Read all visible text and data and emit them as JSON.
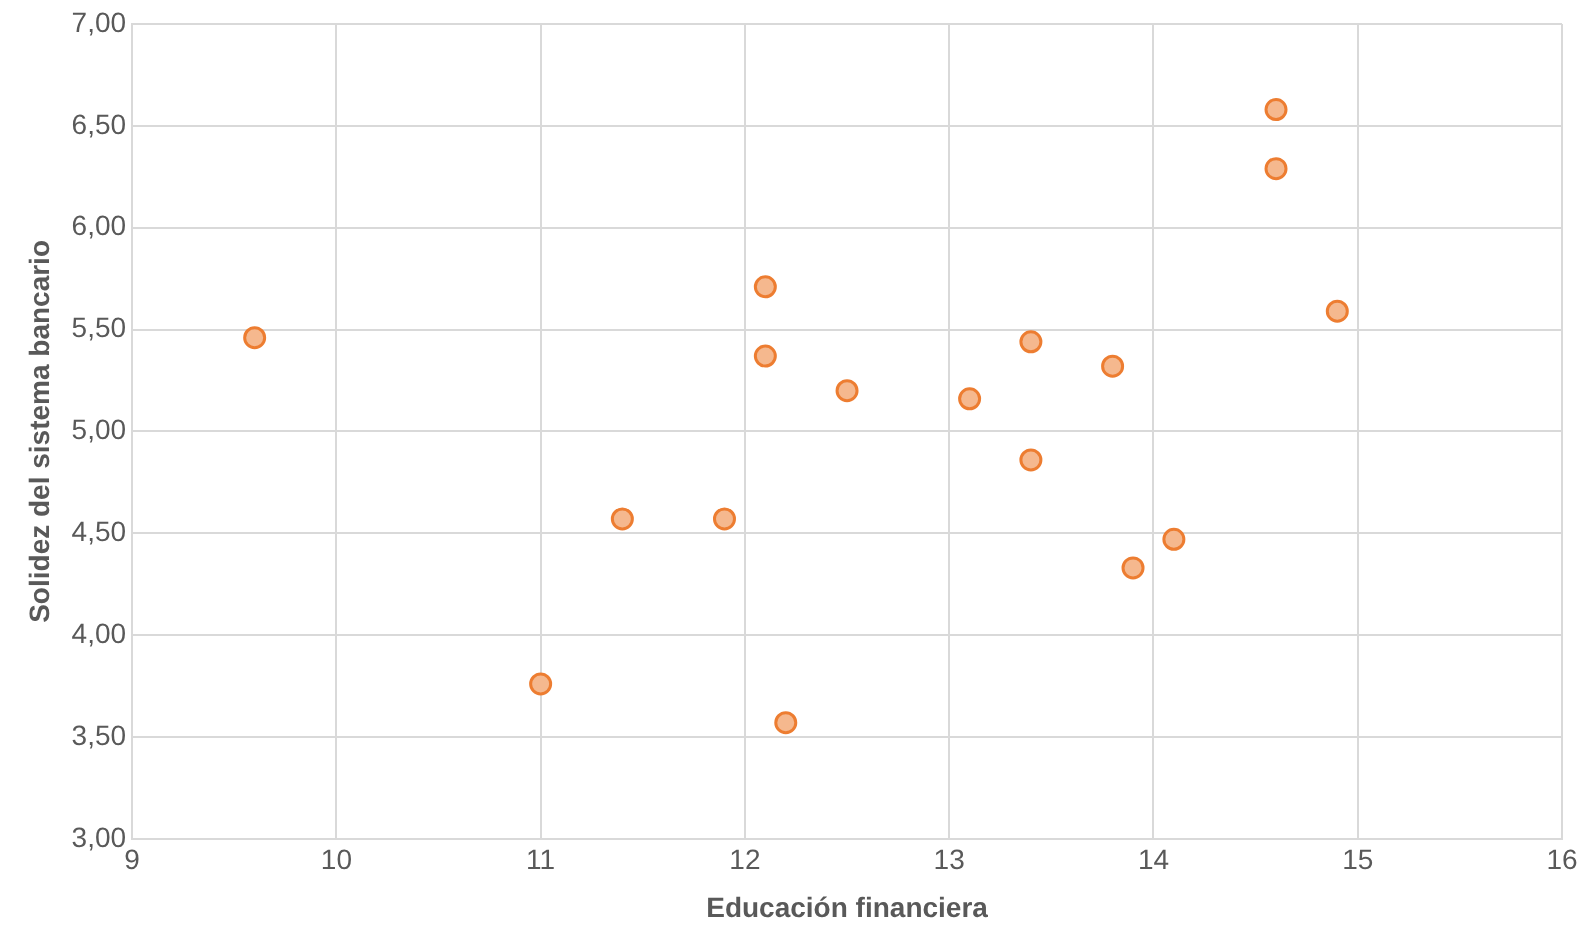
{
  "chart_data": {
    "type": "scatter",
    "xlabel": "Educación financiera",
    "ylabel": "Solidez del sistema bancario",
    "x": [
      9.6,
      11.0,
      11.4,
      11.9,
      12.1,
      12.1,
      12.2,
      12.5,
      13.1,
      13.4,
      13.4,
      13.8,
      13.9,
      14.1,
      14.6,
      14.6,
      14.9
    ],
    "series": [
      {
        "color": "#ed7d31",
        "values": [
          5.46,
          3.76,
          4.57,
          4.57,
          5.71,
          5.37,
          3.57,
          5.2,
          5.16,
          5.44,
          4.86,
          5.32,
          4.33,
          4.47,
          6.58,
          6.29,
          5.59
        ]
      }
    ],
    "xlim": [
      9,
      16
    ],
    "xticks": [
      9,
      10,
      11,
      12,
      13,
      14,
      15,
      16
    ],
    "ylim": [
      3,
      7
    ],
    "yticks": [
      {
        "value": 3,
        "label": "3,00"
      },
      {
        "value": 3.5,
        "label": "3,50"
      },
      {
        "value": 4,
        "label": "4,00"
      },
      {
        "value": 4.5,
        "label": "4,50"
      },
      {
        "value": 5,
        "label": "5,00"
      },
      {
        "value": 5.5,
        "label": "5,50"
      },
      {
        "value": 6,
        "label": "6,00"
      },
      {
        "value": 6.5,
        "label": "6,50"
      },
      {
        "value": 7,
        "label": "7,00"
      }
    ],
    "grid": true,
    "legend": false,
    "marker": "circle"
  }
}
